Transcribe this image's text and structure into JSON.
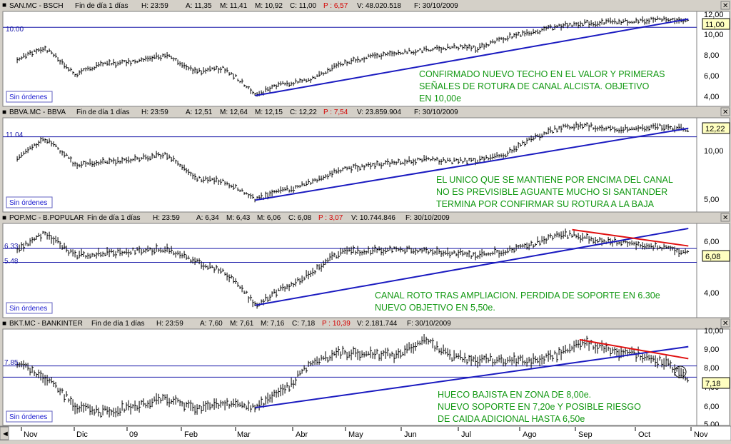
{
  "colors": {
    "bg": "#ffffff",
    "price": "#000000",
    "trend": "#1a1ac0",
    "level": "#1818a8",
    "resistance": "#e01010",
    "annotation": "#129812",
    "badge": "#ffffc0"
  },
  "panels": [
    {
      "id": "san",
      "header": {
        "symbol": "SAN.MC - BSCH",
        "period": "Fin de día 1 días",
        "h": "H: 23:59",
        "a": "A: 11,35",
        "m": "M: 11,41",
        "mi": "M: 10,92",
        "c": "C: 11,00",
        "p": "P : 6,57",
        "v": "V: 48.020.518",
        "f": "F: 30/10/2009"
      },
      "orders_label": "Sin órdenes",
      "last_badge": "11,00",
      "level_label": "10.00",
      "annotation": [
        "CONFIRMADO NUEVO TECHO EN EL VALOR Y PRIMERAS",
        "SEÑALES DE ROTURA DE CANAL ALCISTA. OBJETIVO",
        "EN 10,00e"
      ],
      "y_ticks": [
        "12,00",
        "10,00",
        "8,00",
        "6,00",
        "4,00"
      ]
    },
    {
      "id": "bbva",
      "header": {
        "symbol": "BBVA.MC - BBVA",
        "period": "Fin de día 1 días",
        "h": "H: 23:59",
        "a": "A: 12,51",
        "m": "M: 12,64",
        "mi": "M: 12,15",
        "c": "C: 12,22",
        "p": "P : 7,54",
        "v": "V: 23.859.904",
        "f": "F: 30/10/2009"
      },
      "orders_label": "Sin órdenes",
      "last_badge": "12,22",
      "level_label": "11.04",
      "annotation": [
        "EL UNICO QUE SE MANTIENE POR ENCIMA DEL CANAL",
        "NO ES PREVISIBLE AGUANTE MUCHO SI SANTANDER",
        "TERMINA POR CONFIRMAR SU ROTURA A LA BAJA"
      ],
      "y_ticks": [
        "10,00",
        "5,00"
      ]
    },
    {
      "id": "pop",
      "header": {
        "symbol": "POP.MC - B.POPULAR",
        "period": "Fin de día 1 días",
        "h": "H: 23:59",
        "a": "A: 6,34",
        "m": "M: 6,43",
        "mi": "M: 6,06",
        "c": "C: 6,08",
        "p": "P : 3,07",
        "v": "V: 10.744.846",
        "f": "F: 30/10/2009"
      },
      "orders_label": "Sin órdenes",
      "last_badge": "6,08",
      "level_label": "6.33",
      "level_label_2": "5.48",
      "annotation": [
        "CANAL ROTO TRAS AMPLIACION. PERDIDA DE SOPORTE EN 6.30e",
        "NUEVO OBJETIVO EN 5,50e."
      ],
      "y_ticks": [
        "6,00",
        "4,00"
      ]
    },
    {
      "id": "bkt",
      "header": {
        "symbol": "BKT.MC - BANKINTER",
        "period": "Fin de día 1 días",
        "h": "H: 23:59",
        "a": "A: 7,60",
        "m": "M: 7,61",
        "mi": "M: 7,16",
        "c": "C: 7,18",
        "p": "P : 10,39",
        "v": "V: 2.181.744",
        "f": "F: 30/10/2009"
      },
      "orders_label": "Sin órdenes",
      "last_badge": "7,18",
      "level_label": "7.85",
      "annotation": [
        "HUECO BAJISTA EN ZONA DE 8,00e.",
        "NUEVO SOPORTE EN 7,20e Y POSIBLE RIESGO",
        "DE CAIDA ADICIONAL HASTA 6,50e"
      ],
      "y_ticks": [
        "10,00",
        "9,00",
        "8,00",
        "7,00",
        "6,00",
        "5,00"
      ]
    }
  ],
  "x_axis": {
    "labels": [
      "Nov",
      "Dic",
      "09",
      "Feb",
      "Mar",
      "Abr",
      "May",
      "Jun",
      "Jul",
      "Ago",
      "Sep",
      "Oct",
      "Nov"
    ]
  },
  "chart_data": [
    {
      "type": "bar",
      "title": "SAN.MC - BSCH",
      "ylim": [
        3.4,
        12.2
      ],
      "y_scale": "log",
      "x": [
        "2008-10-31",
        "2008-11-15",
        "2008-12-01",
        "2008-12-15",
        "2009-01-05",
        "2009-01-20",
        "2009-02-05",
        "2009-02-20",
        "2009-03-09",
        "2009-03-25",
        "2009-04-09",
        "2009-04-24",
        "2009-05-11",
        "2009-05-26",
        "2009-06-09",
        "2009-06-24",
        "2009-07-08",
        "2009-07-23",
        "2009-08-06",
        "2009-08-21",
        "2009-09-04",
        "2009-09-18",
        "2009-10-02",
        "2009-10-16",
        "2009-10-30"
      ],
      "values": [
        6.5,
        7.5,
        5.2,
        6.0,
        6.3,
        6.8,
        5.4,
        5.7,
        3.95,
        4.6,
        4.9,
        6.0,
        6.7,
        7.1,
        7.3,
        7.6,
        7.5,
        8.7,
        9.3,
        10.2,
        10.6,
        10.8,
        10.9,
        11.3,
        11.0
      ],
      "series": [
        {
          "name": "",
          "kind": "trendline",
          "x": [
            "2009-03-09",
            "2009-10-30"
          ],
          "y": [
            3.9,
            11.2
          ]
        },
        {
          "name": "",
          "kind": "level",
          "y": 10.0
        }
      ]
    },
    {
      "type": "bar",
      "title": "BBVA.MC - BBVA",
      "ylim": [
        4.3,
        13.8
      ],
      "y_scale": "log",
      "x": [
        "2008-10-31",
        "2008-11-15",
        "2008-12-01",
        "2008-12-15",
        "2009-01-05",
        "2009-01-20",
        "2009-02-05",
        "2009-02-20",
        "2009-03-09",
        "2009-03-25",
        "2009-04-09",
        "2009-04-24",
        "2009-05-11",
        "2009-05-26",
        "2009-06-09",
        "2009-06-24",
        "2009-07-08",
        "2009-07-23",
        "2009-08-06",
        "2009-08-21",
        "2009-09-04",
        "2009-09-18",
        "2009-10-02",
        "2009-10-16",
        "2009-10-30"
      ],
      "values": [
        8.5,
        10.8,
        7.8,
        8.0,
        8.4,
        8.8,
        6.5,
        6.3,
        5.0,
        5.6,
        6.2,
        7.3,
        7.7,
        8.0,
        8.3,
        8.1,
        8.2,
        8.9,
        10.8,
        12.4,
        12.7,
        12.2,
        12.3,
        12.6,
        12.2
      ],
      "series": [
        {
          "name": "",
          "kind": "trendline",
          "x": [
            "2009-03-09",
            "2009-10-30"
          ],
          "y": [
            4.95,
            12.3
          ]
        },
        {
          "name": "",
          "kind": "level",
          "y": 11.04
        }
      ]
    },
    {
      "type": "bar",
      "title": "POP.MC - B.POPULAR",
      "ylim": [
        3.1,
        8.1
      ],
      "y_scale": "log",
      "x": [
        "2008-10-31",
        "2008-11-15",
        "2008-12-01",
        "2008-12-15",
        "2009-01-05",
        "2009-01-20",
        "2009-02-05",
        "2009-02-20",
        "2009-03-09",
        "2009-03-25",
        "2009-04-09",
        "2009-04-24",
        "2009-05-11",
        "2009-05-26",
        "2009-06-09",
        "2009-06-24",
        "2009-07-08",
        "2009-07-23",
        "2009-08-06",
        "2009-08-21",
        "2009-09-04",
        "2009-09-18",
        "2009-10-02",
        "2009-10-16",
        "2009-10-30"
      ],
      "values": [
        6.3,
        7.4,
        5.9,
        6.0,
        6.2,
        6.3,
        5.5,
        5.0,
        3.5,
        4.2,
        4.9,
        6.1,
        6.2,
        6.3,
        6.2,
        6.0,
        5.9,
        6.2,
        6.6,
        7.4,
        7.1,
        6.8,
        6.6,
        6.4,
        6.1
      ],
      "series": [
        {
          "name": "",
          "kind": "trendline",
          "x": [
            "2009-03-09",
            "2009-10-30"
          ],
          "y": [
            3.5,
            7.8
          ]
        },
        {
          "name": "",
          "kind": "resistance",
          "x": [
            "2009-08-28",
            "2009-10-30"
          ],
          "y": [
            7.7,
            6.5
          ]
        },
        {
          "name": "",
          "kind": "level",
          "y": 6.33
        },
        {
          "name": "",
          "kind": "level",
          "y": 5.48
        }
      ]
    },
    {
      "type": "bar",
      "title": "BKT.MC - BANKINTER",
      "ylim": [
        5.0,
        10.3
      ],
      "y_scale": "log",
      "x": [
        "2008-10-31",
        "2008-11-15",
        "2008-12-01",
        "2008-12-15",
        "2009-01-05",
        "2009-01-20",
        "2009-02-05",
        "2009-02-20",
        "2009-03-09",
        "2009-03-25",
        "2009-04-09",
        "2009-04-24",
        "2009-05-11",
        "2009-05-26",
        "2009-06-09",
        "2009-06-24",
        "2009-07-08",
        "2009-07-23",
        "2009-08-06",
        "2009-08-21",
        "2009-09-04",
        "2009-09-18",
        "2009-10-02",
        "2009-10-16",
        "2009-10-30"
      ],
      "values": [
        8.0,
        7.2,
        5.8,
        5.5,
        5.8,
        6.1,
        5.6,
        5.9,
        5.7,
        6.5,
        8.0,
        8.7,
        8.6,
        8.5,
        9.6,
        8.4,
        8.2,
        8.2,
        8.2,
        8.6,
        9.4,
        8.8,
        8.6,
        8.1,
        7.18
      ],
      "series": [
        {
          "name": "",
          "kind": "trendline",
          "x": [
            "2009-03-09",
            "2009-10-30"
          ],
          "y": [
            5.7,
            9.1
          ]
        },
        {
          "name": "",
          "kind": "resistance",
          "x": [
            "2009-09-01",
            "2009-10-30"
          ],
          "y": [
            9.6,
            8.3
          ]
        },
        {
          "name": "",
          "kind": "level",
          "y": 7.85
        },
        {
          "name": "",
          "kind": "level",
          "y": 7.2
        }
      ]
    }
  ]
}
